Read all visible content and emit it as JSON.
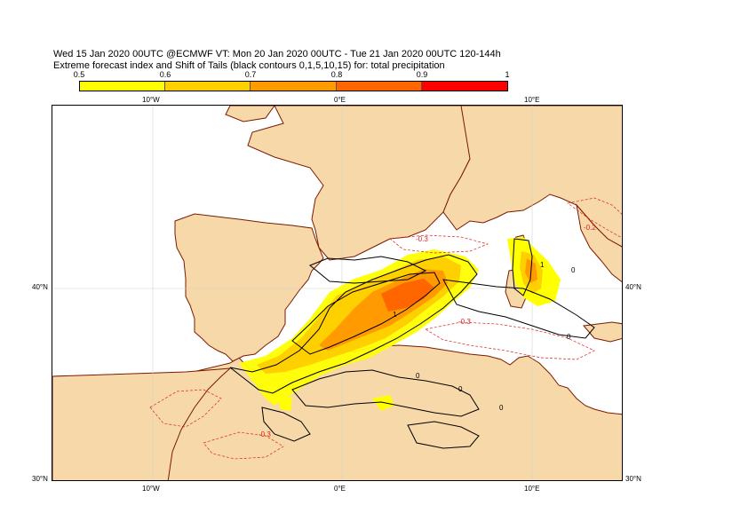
{
  "header": {
    "title_line1": "Wed 15 Jan 2020 00UTC @ECMWF VT: Mon 20 Jan 2020 00UTC - Tue 21 Jan 2020 00UTC  120-144h",
    "title_line2": "Extreme forecast index and Shift of Tails (black contours 0,1,5,10,15) for: total precipitation"
  },
  "colorbar": {
    "ticks": [
      "0.5",
      "0.6",
      "0.7",
      "0.8",
      "0.9",
      "1"
    ],
    "colors": [
      "#ffff00",
      "#ffd000",
      "#ff9b00",
      "#ff6600",
      "#ff0000"
    ]
  },
  "axes": {
    "top_lon": [
      "10°W",
      "0°E",
      "10°E"
    ],
    "bottom_lon": [
      "10°W",
      "0°E",
      "10°E"
    ],
    "left_lat": [
      "40°N",
      "30°N"
    ],
    "right_lat": [
      "40°N",
      "30°N"
    ]
  },
  "contour_labels": {
    "sot_one": "1",
    "sot_zero": "0",
    "neg_03": "-0.3",
    "neg_02": "-0.2"
  },
  "map_colors": {
    "land": "#f7d8a8",
    "sea": "#ffffff",
    "coast": "#7a1a00",
    "grid": "#d0d0d0",
    "sot_contour": "#000000",
    "neg_contour": "#e02020"
  }
}
